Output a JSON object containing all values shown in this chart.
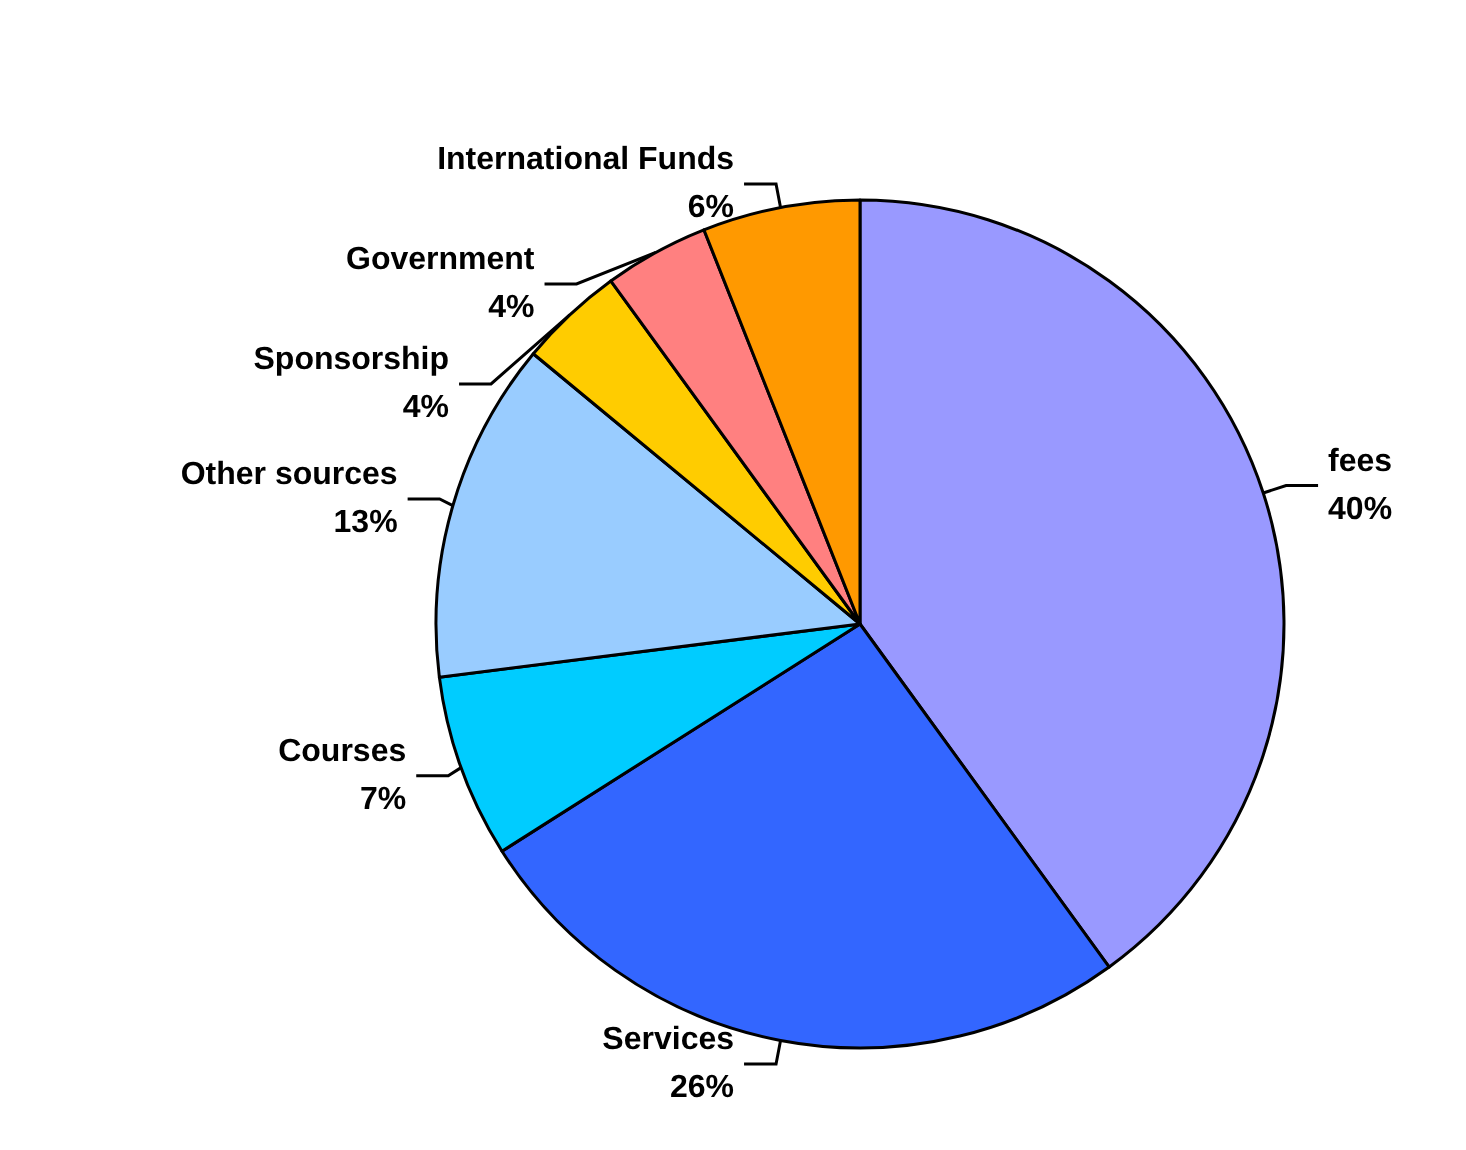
{
  "chart_data": {
    "type": "pie",
    "categories": [
      "fees",
      "Services",
      "Courses",
      "Other sources",
      "Sponsorship",
      "Government",
      "International Funds"
    ],
    "values": [
      40,
      26,
      7,
      13,
      4,
      4,
      6
    ],
    "colors": [
      "#9999ff",
      "#3366ff",
      "#00ccff",
      "#99ccff",
      "#ffcc00",
      "#ff8080",
      "#ff9900"
    ],
    "value_labels": [
      "40%",
      "26%",
      "7%",
      "13%",
      "4%",
      "4%",
      "6%"
    ],
    "legend": false
  }
}
